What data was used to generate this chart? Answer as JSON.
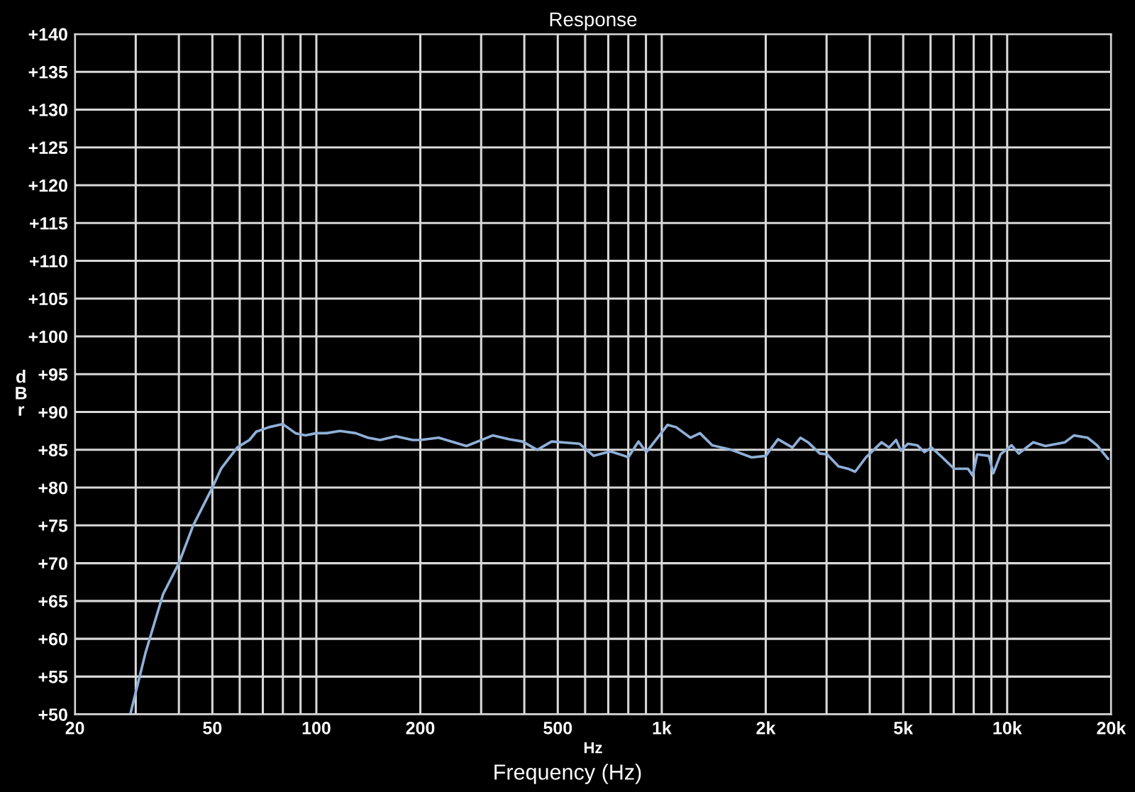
{
  "chart_data": {
    "type": "line",
    "title": "Response",
    "xlabel": "Hz",
    "ylabel": "dBr",
    "annotations": [
      "Frequency (Hz)"
    ],
    "log": "x",
    "grid": true,
    "legend": false,
    "xlim": [
      20,
      20000
    ],
    "ylim": [
      50,
      140
    ],
    "xticks": [
      20,
      {
        "value": 30,
        "label": null
      },
      {
        "value": 40,
        "label": null
      },
      50,
      {
        "value": 60,
        "label": null
      },
      {
        "value": 70,
        "label": null
      },
      {
        "value": 80,
        "label": null
      },
      {
        "value": 90,
        "label": null
      },
      100,
      200,
      {
        "value": 300,
        "label": null
      },
      {
        "value": 400,
        "label": null
      },
      500,
      {
        "value": 600,
        "label": null
      },
      {
        "value": 700,
        "label": null
      },
      {
        "value": 800,
        "label": null
      },
      {
        "value": 900,
        "label": null
      },
      {
        "value": 1000,
        "label": "1k"
      },
      {
        "value": 2000,
        "label": "2k"
      },
      {
        "value": 3000,
        "label": null
      },
      {
        "value": 4000,
        "label": null
      },
      {
        "value": 5000,
        "label": "5k"
      },
      {
        "value": 6000,
        "label": null
      },
      {
        "value": 7000,
        "label": null
      },
      {
        "value": 8000,
        "label": null
      },
      {
        "value": 9000,
        "label": null
      },
      {
        "value": 10000,
        "label": "10k"
      },
      {
        "value": 20000,
        "label": "20k"
      }
    ],
    "yticks": [
      {
        "value": 50,
        "label": "+50"
      },
      {
        "value": 55,
        "label": "+55"
      },
      {
        "value": 60,
        "label": "+60"
      },
      {
        "value": 65,
        "label": "+65"
      },
      {
        "value": 70,
        "label": "+70"
      },
      {
        "value": 75,
        "label": "+75"
      },
      {
        "value": 80,
        "label": "+80"
      },
      {
        "value": 85,
        "label": "+85"
      },
      {
        "value": 90,
        "label": "+90"
      },
      {
        "value": 95,
        "label": "+95"
      },
      {
        "value": 100,
        "label": "+100"
      },
      {
        "value": 105,
        "label": "+105"
      },
      {
        "value": 110,
        "label": "+110"
      },
      {
        "value": 115,
        "label": "+115"
      },
      {
        "value": 120,
        "label": "+120"
      },
      {
        "value": 125,
        "label": "+125"
      },
      {
        "value": 130,
        "label": "+130"
      },
      {
        "value": 135,
        "label": "+135"
      },
      {
        "value": 140,
        "label": "+140"
      }
    ],
    "series": [
      {
        "color": "#8fb0d8",
        "x": [
          29,
          32,
          36,
          40,
          44,
          50,
          53,
          59,
          64,
          67,
          73,
          80,
          87,
          93,
          100,
          107,
          117,
          130,
          141,
          153,
          170,
          190,
          200,
          226,
          272,
          324,
          362,
          395,
          436,
          480,
          578,
          635,
          710,
          780,
          800,
          856,
          902,
          972,
          1040,
          1100,
          1210,
          1290,
          1400,
          1590,
          1820,
          2000,
          2170,
          2390,
          2520,
          2650,
          2870,
          3010,
          3250,
          3460,
          3630,
          3900,
          4330,
          4550,
          4770,
          4920,
          5160,
          5490,
          5760,
          6040,
          6490,
          7020,
          7700,
          7940,
          8190,
          8850,
          9120,
          9570,
          10300,
          10800,
          11900,
          12900,
          14700,
          15600,
          17100,
          18200,
          19600
        ],
        "values": [
          50.2,
          58.1,
          65.9,
          70,
          75,
          80,
          82.5,
          85.3,
          86.3,
          87.4,
          88,
          88.4,
          87.2,
          86.9,
          87.2,
          87.2,
          87.5,
          87.2,
          86.6,
          86.3,
          86.8,
          86.3,
          86.3,
          86.6,
          85.5,
          86.9,
          86.4,
          86.1,
          85,
          86.1,
          85.8,
          84.2,
          84.8,
          84.2,
          84,
          86.1,
          84.7,
          86.6,
          88.3,
          88,
          86.6,
          87.2,
          85.6,
          85,
          84,
          84.2,
          86.4,
          85.3,
          86.6,
          86,
          84.5,
          84.4,
          82.8,
          82.5,
          82.1,
          84,
          86,
          85.3,
          86.3,
          84.9,
          85.8,
          85.6,
          84.7,
          85.3,
          84,
          82.5,
          82.5,
          81.6,
          84.4,
          84.2,
          81.9,
          84.4,
          85.6,
          84.5,
          86,
          85.5,
          86,
          86.9,
          86.6,
          85.6,
          83.8
        ]
      }
    ]
  }
}
